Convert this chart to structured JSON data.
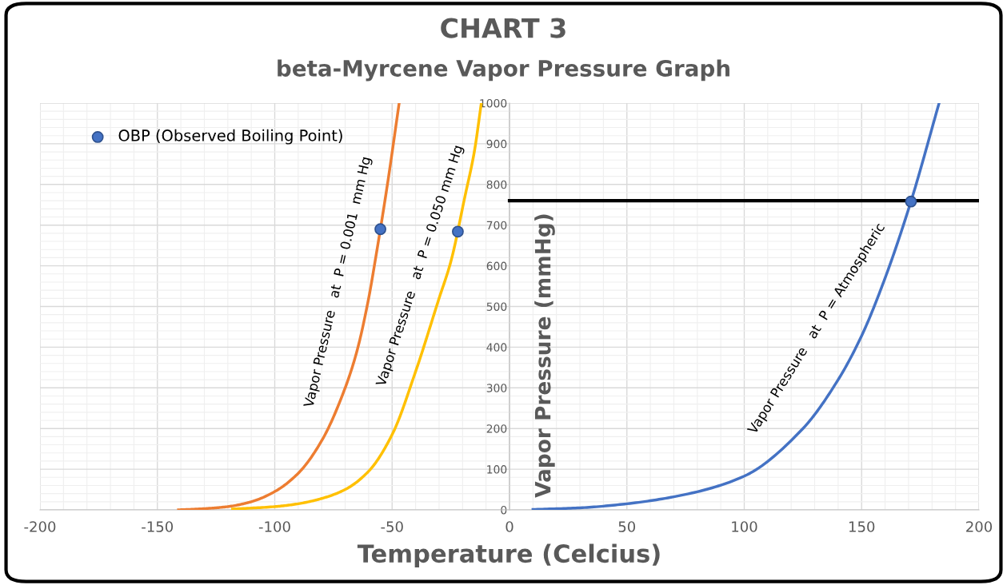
{
  "chart_data": {
    "type": "line",
    "title": "CHART 3",
    "subtitle": "beta-Myrcene Vapor Pressure Graph",
    "xlabel": "Temperature (Celcius)",
    "ylabel": "Vapor Pressure (mmHg)",
    "xlim": [
      -200,
      200
    ],
    "xticks": [
      -200,
      -150,
      -100,
      -50,
      0,
      50,
      100,
      150,
      200
    ],
    "ylim": [
      0,
      1000
    ],
    "yticks": [
      0,
      100,
      200,
      300,
      400,
      500,
      600,
      700,
      800,
      900,
      1000
    ],
    "grid": true,
    "legend": "top left",
    "marker": "none",
    "line_style": "solid",
    "series": [
      {
        "color": "#ed7d31",
        "x": [
          -141,
          -130,
          -120,
          -110,
          -100,
          -90,
          -80,
          -70,
          -65,
          -60,
          -57,
          -52,
          -47
        ],
        "values": [
          0,
          3,
          8,
          20,
          45,
          90,
          170,
          300,
          390,
          520,
          620,
          800,
          1000
        ]
      },
      {
        "color": "#ffc000",
        "x": [
          -118,
          -100,
          -90,
          -80,
          -70,
          -60,
          -50,
          -40,
          -30,
          -25,
          -19,
          -15,
          -12
        ],
        "values": [
          2,
          8,
          15,
          28,
          50,
          95,
          185,
          340,
          520,
          610,
          770,
          880,
          1000
        ]
      },
      {
        "color": "#4472c4",
        "x": [
          10,
          30,
          50,
          75,
          100,
          125,
          140,
          150,
          160,
          171,
          183
        ],
        "values": [
          1,
          5,
          15,
          38,
          83,
          200,
          320,
          428,
          570,
          758,
          1000
        ]
      },
      {
        "color": "#000000",
        "x": [
          0,
          200
        ],
        "values": [
          760,
          760
        ]
      },
      {
        "type": "scatter",
        "name": "OBP (Observed Boiling Point)",
        "color": "#4472c4",
        "marker": "circle",
        "x": [
          -55,
          -22,
          171
        ],
        "values": [
          690,
          684,
          758
        ]
      }
    ],
    "annotations": [
      "Vapor Pressure   at  P = 0.001  mm Hg",
      "Vapor Pressure   at  P = 0.050 mm Hg",
      "Vapor Pressure   at  P = Atmospheric"
    ]
  }
}
